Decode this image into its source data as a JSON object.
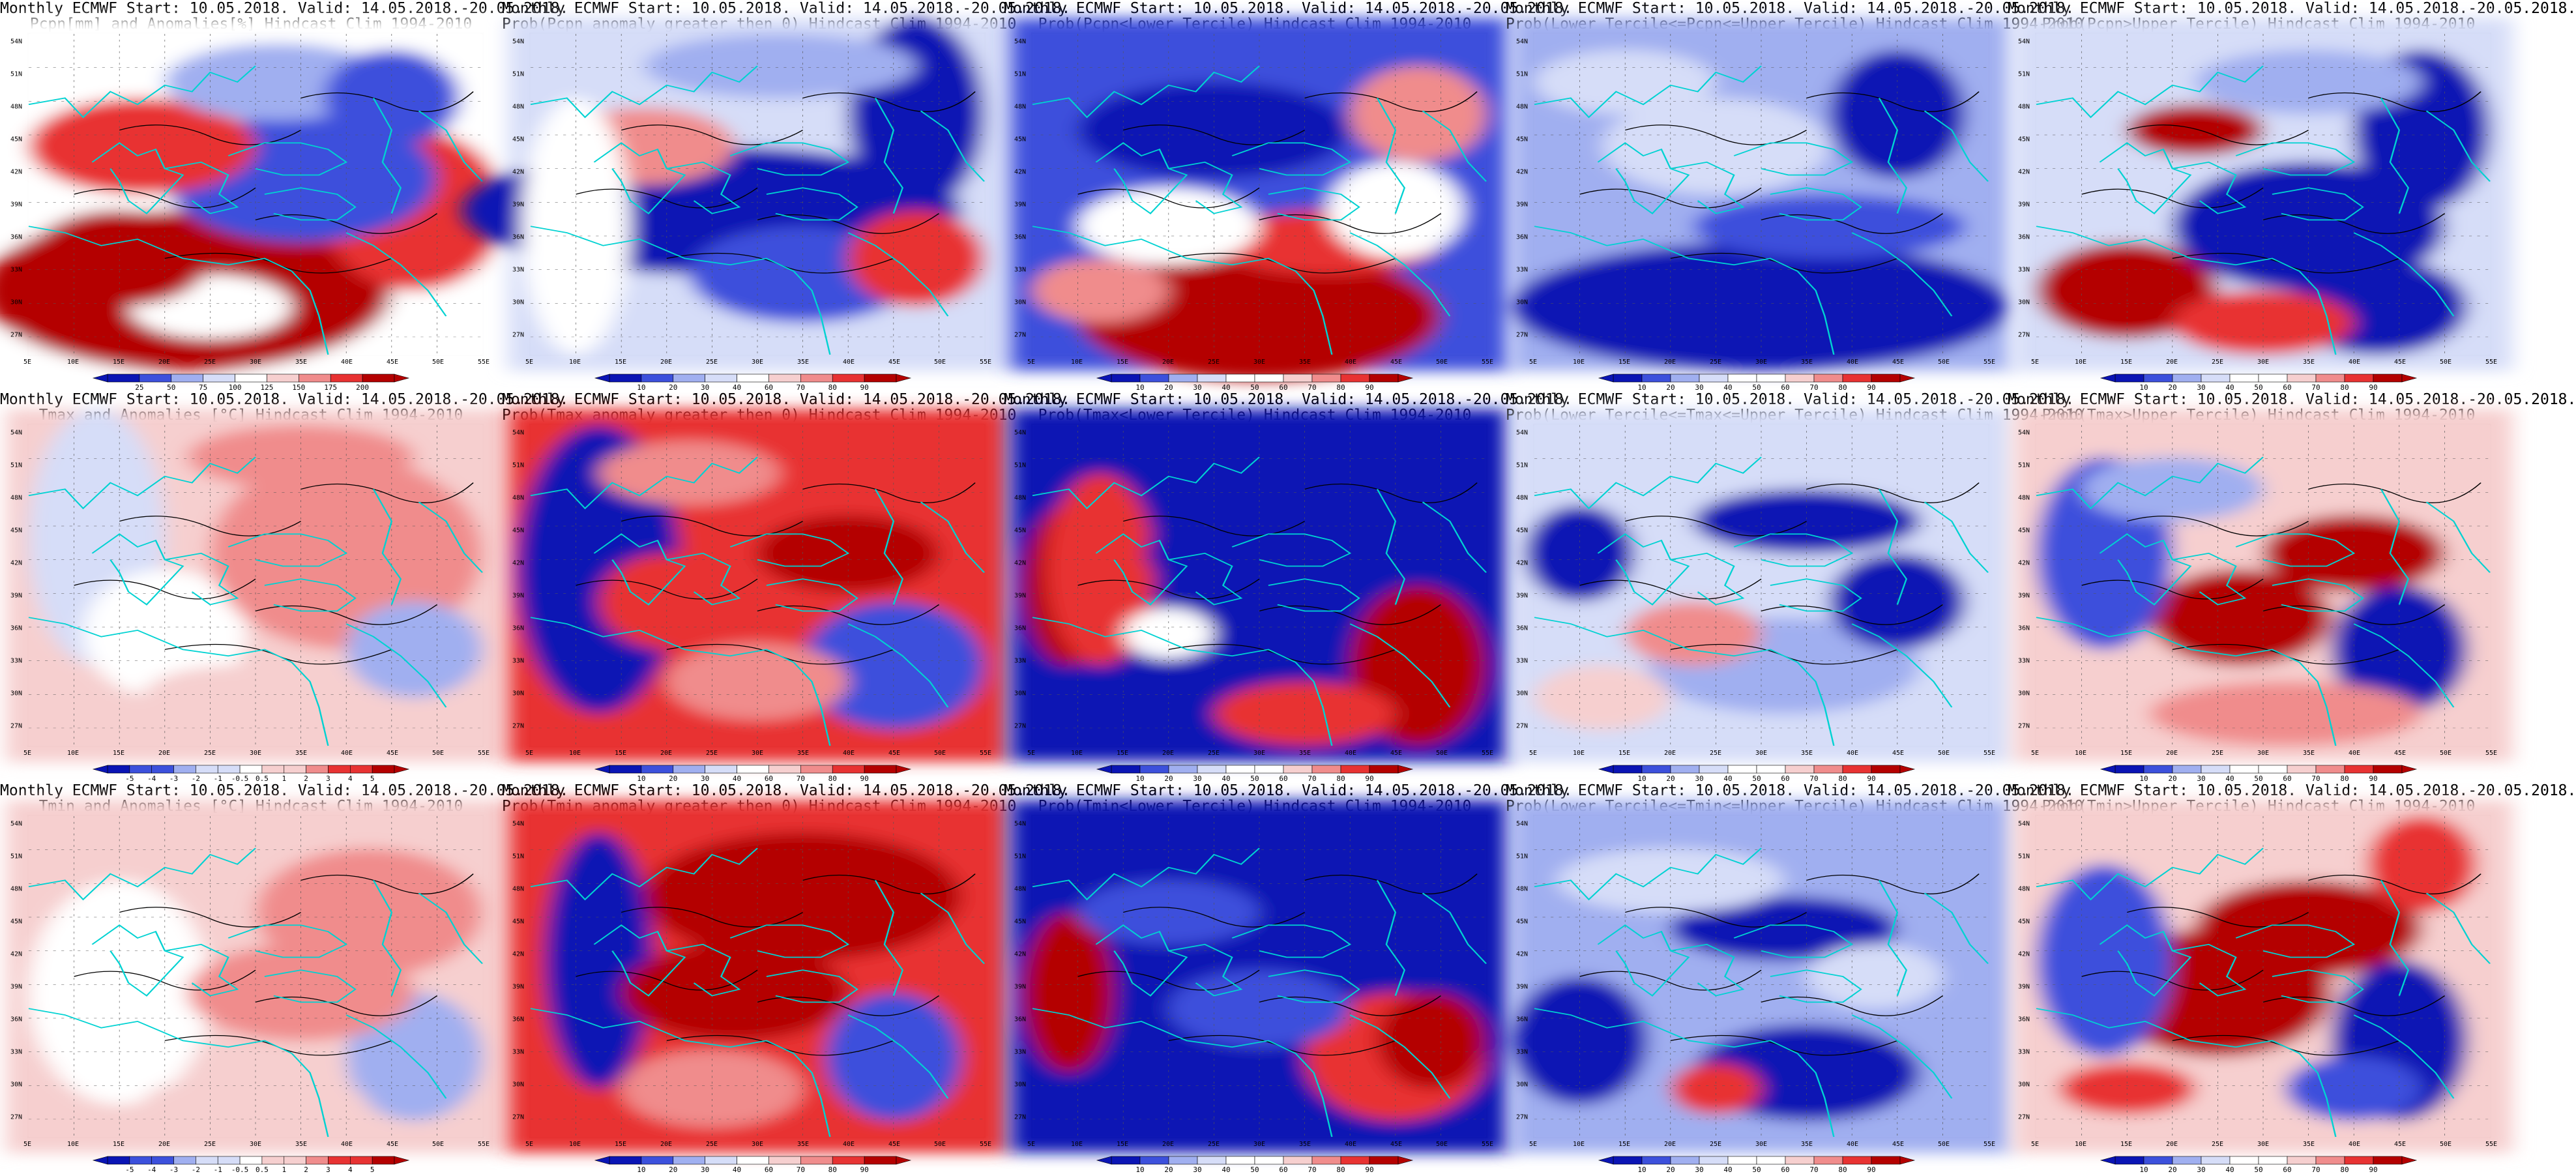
{
  "colors": {
    "deep_blue": "#0a14b4",
    "mid_blue": "#3c50dc",
    "light_blue": "#a0aff0",
    "pale_blue": "#d6ddf8",
    "white": "#ffffff",
    "pale_red": "#f6cfcf",
    "light_red": "#f08c8c",
    "mid_red": "#e83232",
    "deep_red": "#b40000",
    "coast": "#00d2d2",
    "contour": "#000000"
  },
  "axes": {
    "lon_labels": [
      "5E",
      "10E",
      "15E",
      "20E",
      "25E",
      "30E",
      "35E",
      "40E",
      "45E",
      "50E",
      "55E"
    ],
    "lat_labels": [
      "54N",
      "51N",
      "48N",
      "45N",
      "42N",
      "39N",
      "36N",
      "33N",
      "30N",
      "27N"
    ]
  },
  "panels": [
    {
      "title1": "Monthly ECMWF Start: 10.05.2018. Valid: 14.05.2018.-20.05.2018.",
      "title2": "Pcpn[mm] and Anomalies[%] Hindcast Clim 1994-2010",
      "scale": [
        "25",
        "50",
        "75",
        "100",
        "125",
        "150",
        "175",
        "200"
      ],
      "theme": "pcpn_anom"
    },
    {
      "title1": "Monthly ECMWF Start: 10.05.2018. Valid: 14.05.2018.-20.05.2018.",
      "title2": "Prob(Pcpn anomaly greater then 0) Hindcast Clim 1994-2010",
      "scale": [
        "10",
        "20",
        "30",
        "40",
        "60",
        "70",
        "80",
        "90"
      ],
      "theme": "pcpn_prob"
    },
    {
      "title1": "Monthly ECMWF Start: 10.05.2018. Valid: 14.05.2018.-20.05.2018.",
      "title2": "Prob(Pcpn<Lower Tercile) Hindcast Clim 1994-2010",
      "scale": [
        "10",
        "20",
        "30",
        "40",
        "50",
        "60",
        "70",
        "80",
        "90"
      ],
      "theme": "pcpn_low"
    },
    {
      "title1": "Monthly ECMWF Start: 10.05.2018. Valid: 14.05.2018.-20.05.2018.",
      "title2": "Prob(Lower Tercile<=Pcpn<=Upper Tercile) Hindcast Clim 1994-2010",
      "scale": [
        "10",
        "20",
        "30",
        "40",
        "50",
        "60",
        "70",
        "80",
        "90"
      ],
      "theme": "pcpn_mid"
    },
    {
      "title1": "Monthly ECMWF Start: 10.05.2018. Valid: 14.05.2018.-20.05.2018.",
      "title2": "Prob(Pcpn>Upper Tercile) Hindcast Clim 1994-2010",
      "scale": [
        "10",
        "20",
        "30",
        "40",
        "50",
        "60",
        "70",
        "80",
        "90"
      ],
      "theme": "pcpn_up"
    },
    {
      "title1": "Monthly ECMWF Start: 10.05.2018. Valid: 14.05.2018.-20.05.2018.",
      "title2": "Tmax and Anomalies [°C] Hindcast Clim 1994-2010",
      "scale": [
        "-5",
        "-4",
        "-3",
        "-2",
        "-1",
        "-0.5",
        "0.5",
        "1",
        "2",
        "3",
        "4",
        "5"
      ],
      "theme": "tmax_anom"
    },
    {
      "title1": "Monthly ECMWF Start: 10.05.2018. Valid: 14.05.2018.-20.05.2018.",
      "title2": "Prob(Tmax anomaly greater then 0) Hindcast Clim 1994-2010",
      "scale": [
        "10",
        "20",
        "30",
        "40",
        "60",
        "70",
        "80",
        "90"
      ],
      "theme": "tmax_prob"
    },
    {
      "title1": "Monthly ECMWF Start: 10.05.2018. Valid: 14.05.2018.-20.05.2018.",
      "title2": "Prob(Tmax<Lower Tercile) Hindcast Clim 1994-2010",
      "scale": [
        "10",
        "20",
        "30",
        "40",
        "50",
        "60",
        "70",
        "80",
        "90"
      ],
      "theme": "tmax_low"
    },
    {
      "title1": "Monthly ECMWF Start: 10.05.2018. Valid: 14.05.2018.-20.05.2018.",
      "title2": "Prob(Lower Tercile<=Tmax<=Upper Tercile) Hindcast Clim 1994-2010",
      "scale": [
        "10",
        "20",
        "30",
        "40",
        "50",
        "60",
        "70",
        "80",
        "90"
      ],
      "theme": "tmax_mid"
    },
    {
      "title1": "Monthly ECMWF Start: 10.05.2018. Valid: 14.05.2018.-20.05.2018.",
      "title2": "Prob(Tmax>Upper Tercile) Hindcast Clim 1994-2010",
      "scale": [
        "10",
        "20",
        "30",
        "40",
        "50",
        "60",
        "70",
        "80",
        "90"
      ],
      "theme": "tmax_up"
    },
    {
      "title1": "Monthly ECMWF Start: 10.05.2018. Valid: 14.05.2018.-20.05.2018.",
      "title2": "Tmin and Anomalies [°C] Hindcast Clim 1994-2010",
      "scale": [
        "-5",
        "-4",
        "-3",
        "-2",
        "-1",
        "-0.5",
        "0.5",
        "1",
        "2",
        "3",
        "4",
        "5"
      ],
      "theme": "tmin_anom"
    },
    {
      "title1": "Monthly ECMWF Start: 10.05.2018. Valid: 14.05.2018.-20.05.2018.",
      "title2": "Prob(Tmin anomaly greater then 0) Hindcast Clim 1994-2010",
      "scale": [
        "10",
        "20",
        "30",
        "40",
        "60",
        "70",
        "80",
        "90"
      ],
      "theme": "tmin_prob"
    },
    {
      "title1": "Monthly ECMWF Start: 10.05.2018. Valid: 14.05.2018.-20.05.2018.",
      "title2": "Prob(Tmin<Lower Tercile) Hindcast Clim 1994-2010",
      "scale": [
        "10",
        "20",
        "30",
        "40",
        "50",
        "60",
        "70",
        "80",
        "90"
      ],
      "theme": "tmin_low"
    },
    {
      "title1": "Monthly ECMWF Start: 10.05.2018. Valid: 14.05.2018.-20.05.2018.",
      "title2": "Prob(Lower Tercile<=Tmin<=Upper Tercile) Hindcast Clim 1994-2010",
      "scale": [
        "10",
        "20",
        "30",
        "40",
        "50",
        "60",
        "70",
        "80",
        "90"
      ],
      "theme": "tmin_mid"
    },
    {
      "title1": "Monthly ECMWF Start: 10.05.2018. Valid: 14.05.2018.-20.05.2018.",
      "title2": "Prob(Tmin>Upper Tercile) Hindcast Clim 1994-2010",
      "scale": [
        "10",
        "20",
        "30",
        "40",
        "50",
        "60",
        "70",
        "80",
        "90"
      ],
      "theme": "tmin_up"
    }
  ]
}
